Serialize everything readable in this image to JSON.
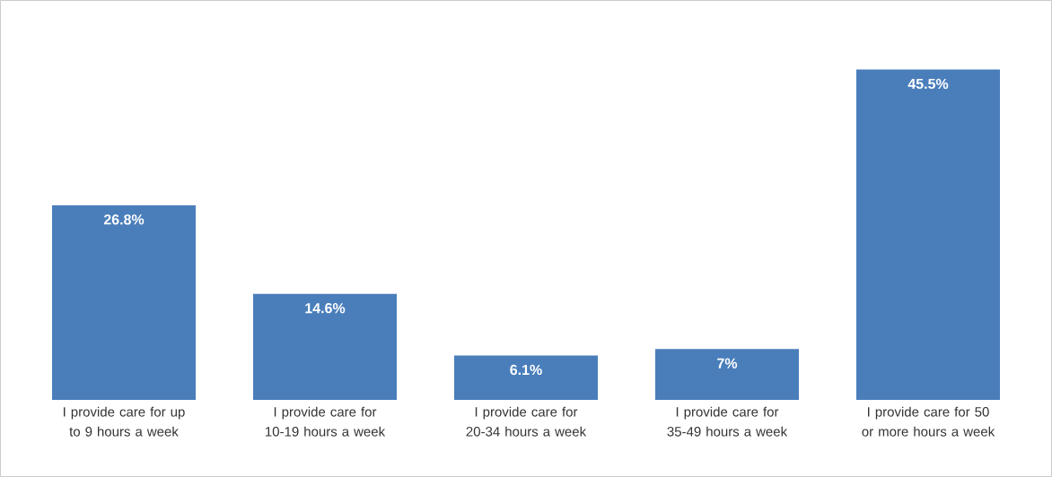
{
  "chart_data": {
    "type": "bar",
    "categories": [
      "I provide care for up to 9 hours a week",
      "I provide care for 10-19 hours a week",
      "I provide care for 20-34 hours a week",
      "I provide care for 35-49 hours a week",
      "I provide care for 50 or more hours a week"
    ],
    "values": [
      26.8,
      14.6,
      6.1,
      7,
      45.5
    ],
    "value_labels": [
      "26.8%",
      "14.6%",
      "6.1%",
      "7%",
      "45.5%"
    ],
    "color": "#4a7ebb"
  }
}
